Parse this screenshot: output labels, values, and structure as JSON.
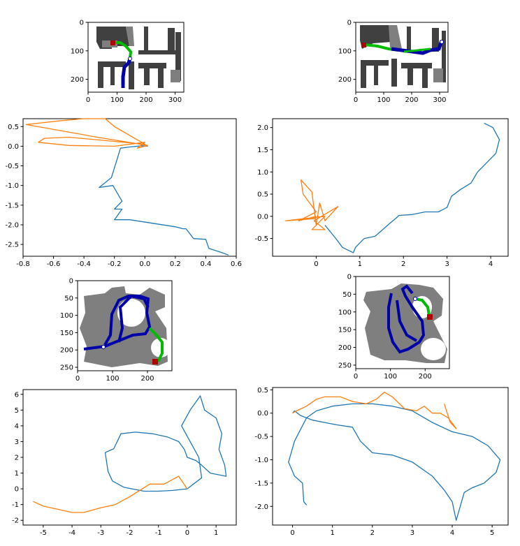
{
  "colors": {
    "blue_line": "#1f77b4",
    "orange_line": "#ff7f0e",
    "map_dark": "#404040",
    "map_mid": "#7f7f7f",
    "path_blue": "#0000a8",
    "path_green": "#00bb00",
    "goal_red": "#b00000"
  },
  "chart_data": [
    {
      "type": "map-image",
      "xticks": [
        "0",
        "100",
        "200",
        "300"
      ],
      "yticks": [
        "0",
        "100",
        "200"
      ]
    },
    {
      "type": "map-image",
      "xticks": [
        "0",
        "100",
        "200",
        "300"
      ],
      "yticks": [
        "0",
        "100",
        "200"
      ]
    },
    {
      "type": "line",
      "xlim": [
        -0.8,
        0.6
      ],
      "ylim": [
        -2.8,
        0.7
      ],
      "xticks": [
        "-0.8",
        "-0.6",
        "-0.4",
        "-0.2",
        "0.0",
        "0.2",
        "0.4",
        "0.6"
      ],
      "yticks": [
        "0.5",
        "0.0",
        "-0.5",
        "-1.0",
        "-1.5",
        "-2.0",
        "-2.5"
      ],
      "series": [
        {
          "color": "#1f77b4",
          "points": [
            [
              0.02,
              0.0
            ],
            [
              -0.02,
              0.01
            ],
            [
              -0.1,
              -0.02
            ],
            [
              -0.16,
              -0.05
            ],
            [
              -0.18,
              -0.3
            ],
            [
              -0.2,
              -0.55
            ],
            [
              -0.22,
              -0.8
            ],
            [
              -0.3,
              -1.05
            ],
            [
              -0.21,
              -1.0
            ],
            [
              -0.15,
              -1.4
            ],
            [
              -0.2,
              -1.6
            ],
            [
              -0.15,
              -1.6
            ],
            [
              -0.2,
              -1.87
            ],
            [
              -0.1,
              -1.87
            ],
            [
              0.2,
              -2.05
            ],
            [
              0.25,
              -2.1
            ],
            [
              0.27,
              -2.1
            ],
            [
              0.32,
              -2.35
            ],
            [
              0.4,
              -2.37
            ],
            [
              0.42,
              -2.6
            ],
            [
              0.5,
              -2.7
            ],
            [
              0.55,
              -2.77
            ]
          ]
        },
        {
          "color": "#ff7f0e",
          "points": [
            [
              0.02,
              0.02
            ],
            [
              -0.3,
              0.22
            ],
            [
              -0.78,
              0.55
            ],
            [
              -0.55,
              0.65
            ],
            [
              -0.4,
              0.7
            ],
            [
              -0.26,
              0.7
            ],
            [
              -0.2,
              0.5
            ],
            [
              0.0,
              0.05
            ],
            [
              -0.5,
              0.23
            ],
            [
              -0.66,
              0.2
            ],
            [
              -0.7,
              0.1
            ],
            [
              -0.5,
              0.02
            ],
            [
              -0.2,
              0.0
            ],
            [
              0.0,
              0.1
            ],
            [
              -0.05,
              -0.05
            ],
            [
              0.02,
              0.02
            ]
          ]
        }
      ]
    },
    {
      "type": "line",
      "xlim": [
        -1,
        4.4
      ],
      "ylim": [
        -0.9,
        2.2
      ],
      "xticks": [
        "0",
        "1",
        "2",
        "3",
        "4"
      ],
      "yticks": [
        "2.0",
        "1.5",
        "1.0",
        "0.5",
        "0.0",
        "-0.5"
      ],
      "series": [
        {
          "color": "#1f77b4",
          "points": [
            [
              0.2,
              -0.2
            ],
            [
              0.45,
              -0.5
            ],
            [
              0.6,
              -0.7
            ],
            [
              0.85,
              -0.82
            ],
            [
              0.9,
              -0.7
            ],
            [
              1.1,
              -0.5
            ],
            [
              1.35,
              -0.45
            ],
            [
              1.7,
              -0.15
            ],
            [
              1.82,
              -0.05
            ],
            [
              1.9,
              0.02
            ],
            [
              2.2,
              0.04
            ],
            [
              2.5,
              0.1
            ],
            [
              2.8,
              0.1
            ],
            [
              3.0,
              0.2
            ],
            [
              3.1,
              0.45
            ],
            [
              3.3,
              0.6
            ],
            [
              3.55,
              0.75
            ],
            [
              3.7,
              1.0
            ],
            [
              3.95,
              1.25
            ],
            [
              4.12,
              1.42
            ],
            [
              4.2,
              1.73
            ],
            [
              4.05,
              2.0
            ],
            [
              3.85,
              2.1
            ]
          ]
        },
        {
          "color": "#ff7f0e",
          "points": [
            [
              0.0,
              0.0
            ],
            [
              -0.4,
              -0.1
            ],
            [
              0.0,
              0.1
            ],
            [
              -0.3,
              0.5
            ],
            [
              -0.35,
              0.82
            ],
            [
              -0.1,
              0.55
            ],
            [
              0.0,
              -0.2
            ],
            [
              0.08,
              0.3
            ],
            [
              0.2,
              -0.1
            ],
            [
              0.5,
              0.22
            ],
            [
              -0.05,
              -0.1
            ],
            [
              0.2,
              -0.3
            ],
            [
              -0.1,
              -0.3
            ],
            [
              0.2,
              0.0
            ],
            [
              -0.7,
              -0.1
            ],
            [
              0.0,
              -0.05
            ]
          ]
        }
      ]
    },
    {
      "type": "map-image",
      "xticks": [
        "0",
        "100",
        "200"
      ],
      "yticks": [
        "0",
        "50",
        "100",
        "150",
        "200",
        "250"
      ]
    },
    {
      "type": "map-image",
      "xticks": [
        "0",
        "100",
        "200"
      ],
      "yticks": [
        "0",
        "50",
        "100",
        "150",
        "200",
        "250"
      ]
    },
    {
      "type": "line",
      "xlim": [
        -5.7,
        1.7
      ],
      "ylim": [
        -2.3,
        6.3
      ],
      "xticks": [
        "-5",
        "-4",
        "-3",
        "-2",
        "-1",
        "0",
        "1"
      ],
      "yticks": [
        "6",
        "5",
        "4",
        "3",
        "2",
        "1",
        "0",
        "-1",
        "-2"
      ],
      "series": [
        {
          "color": "#1f77b4",
          "points": [
            [
              0.0,
              0.0
            ],
            [
              -0.5,
              -0.1
            ],
            [
              -1.0,
              -0.15
            ],
            [
              -1.5,
              -0.15
            ],
            [
              -2.2,
              0.1
            ],
            [
              -2.6,
              0.5
            ],
            [
              -2.75,
              1.1
            ],
            [
              -2.85,
              2.3
            ],
            [
              -2.55,
              2.55
            ],
            [
              -2.3,
              3.5
            ],
            [
              -1.8,
              3.6
            ],
            [
              -1.2,
              3.5
            ],
            [
              -0.7,
              3.3
            ],
            [
              -0.3,
              3.0
            ],
            [
              -0.1,
              2.5
            ],
            [
              0.0,
              2.0
            ],
            [
              0.3,
              1.8
            ],
            [
              0.5,
              1.5
            ],
            [
              0.8,
              1.0
            ],
            [
              1.35,
              0.8
            ],
            [
              1.3,
              1.5
            ],
            [
              1.1,
              2.5
            ],
            [
              1.2,
              3.5
            ],
            [
              1.0,
              4.5
            ],
            [
              0.6,
              5.0
            ],
            [
              0.45,
              5.9
            ],
            [
              0.1,
              5.0
            ],
            [
              -0.2,
              4.0
            ],
            [
              0.4,
              2.0
            ],
            [
              0.5,
              0.7
            ],
            [
              0.0,
              0.0
            ]
          ]
        },
        {
          "color": "#ff7f0e",
          "points": [
            [
              0.0,
              0.0
            ],
            [
              -0.3,
              0.8
            ],
            [
              -0.8,
              0.3
            ],
            [
              -1.3,
              0.3
            ],
            [
              -2.0,
              -0.5
            ],
            [
              -2.5,
              -1.0
            ],
            [
              -3.0,
              -1.2
            ],
            [
              -3.6,
              -1.5
            ],
            [
              -4.0,
              -1.5
            ],
            [
              -4.5,
              -1.3
            ],
            [
              -5.0,
              -1.1
            ],
            [
              -5.35,
              -0.8
            ]
          ]
        }
      ]
    },
    {
      "type": "line",
      "xlim": [
        -0.5,
        5.4
      ],
      "ylim": [
        -2.4,
        0.55
      ],
      "xticks": [
        "0",
        "1",
        "2",
        "3",
        "4",
        "5"
      ],
      "yticks": [
        "0.5",
        "0.0",
        "-0.5",
        "-1.0",
        "-1.5",
        "-2.0"
      ],
      "series": [
        {
          "color": "#1f77b4",
          "points": [
            [
              0.35,
              -1.97
            ],
            [
              0.28,
              -1.9
            ],
            [
              0.25,
              -1.5
            ],
            [
              0.05,
              -1.35
            ],
            [
              -0.1,
              -1.05
            ],
            [
              0.05,
              -0.6
            ],
            [
              0.2,
              -0.35
            ],
            [
              0.35,
              -0.1
            ],
            [
              0.6,
              0.05
            ],
            [
              1.0,
              0.15
            ],
            [
              1.5,
              0.2
            ],
            [
              2.0,
              0.2
            ],
            [
              2.5,
              0.15
            ],
            [
              3.0,
              0.05
            ],
            [
              3.5,
              -0.2
            ],
            [
              4.0,
              -0.4
            ],
            [
              4.5,
              -0.5
            ],
            [
              4.9,
              -0.7
            ],
            [
              5.1,
              -0.9
            ],
            [
              5.2,
              -1.0
            ],
            [
              5.1,
              -1.27
            ],
            [
              4.8,
              -1.5
            ],
            [
              4.5,
              -1.6
            ],
            [
              4.3,
              -1.7
            ],
            [
              4.1,
              -2.3
            ],
            [
              4.0,
              -1.9
            ],
            [
              3.8,
              -1.65
            ],
            [
              3.5,
              -1.35
            ],
            [
              3.0,
              -1.05
            ],
            [
              2.5,
              -0.9
            ],
            [
              2.0,
              -0.85
            ],
            [
              1.7,
              -0.6
            ],
            [
              1.5,
              -0.3
            ],
            [
              1.1,
              -0.25
            ],
            [
              0.8,
              -0.2
            ],
            [
              0.5,
              -0.15
            ],
            [
              0.2,
              -0.05
            ],
            [
              0.05,
              0.05
            ],
            [
              0.0,
              0.0
            ]
          ]
        },
        {
          "color": "#ff7f0e",
          "points": [
            [
              0.0,
              0.0
            ],
            [
              0.1,
              0.05
            ],
            [
              0.35,
              0.15
            ],
            [
              0.6,
              0.3
            ],
            [
              0.8,
              0.35
            ],
            [
              1.2,
              0.35
            ],
            [
              1.5,
              0.25
            ],
            [
              1.85,
              0.2
            ],
            [
              2.1,
              0.3
            ],
            [
              2.3,
              0.45
            ],
            [
              2.5,
              0.35
            ],
            [
              2.8,
              0.1
            ],
            [
              3.1,
              0.05
            ],
            [
              3.3,
              0.15
            ],
            [
              3.5,
              0.0
            ],
            [
              3.7,
              0.0
            ],
            [
              3.9,
              -0.1
            ],
            [
              4.1,
              -0.33
            ],
            [
              3.95,
              -0.2
            ],
            [
              3.8,
              0.2
            ]
          ]
        }
      ]
    }
  ]
}
